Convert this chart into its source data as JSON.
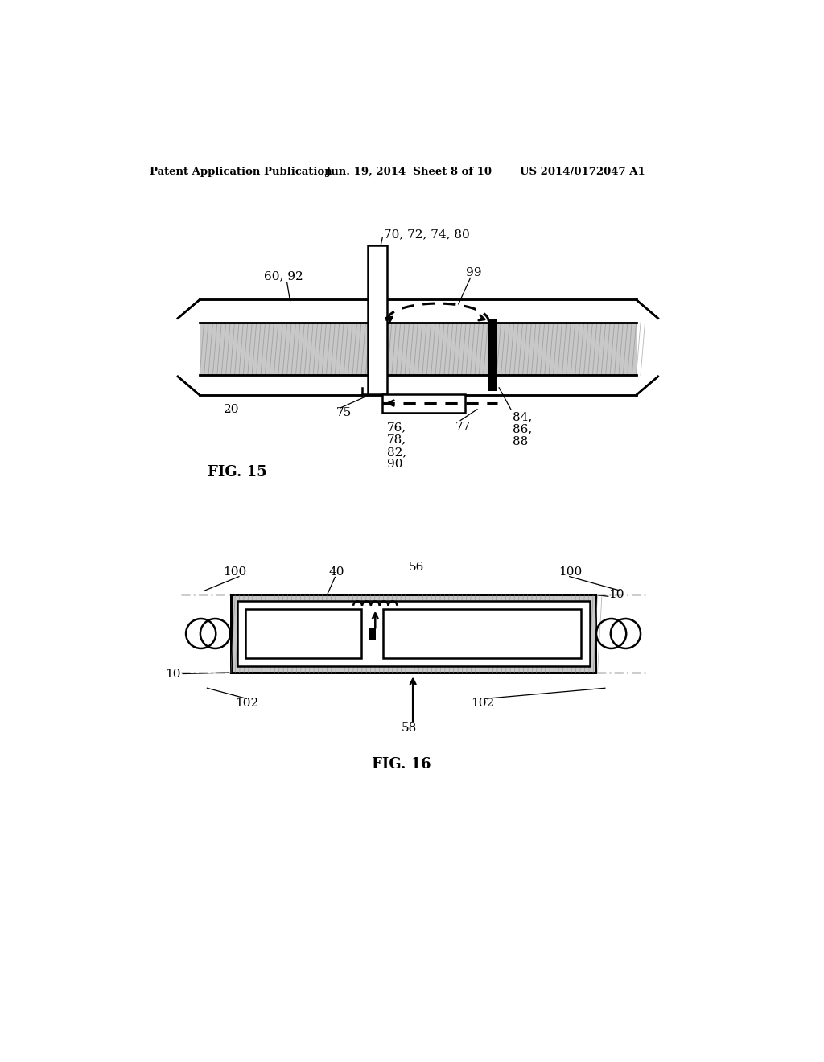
{
  "header_left": "Patent Application Publication",
  "header_mid": "Jun. 19, 2014  Sheet 8 of 10",
  "header_right": "US 2014/0172047 A1",
  "fig15_label": "FIG. 15",
  "fig16_label": "FIG. 16",
  "bg_color": "#ffffff",
  "line_color": "#000000",
  "hatch_gray": "#c8c8c8",
  "hatch_dark": "#888888"
}
